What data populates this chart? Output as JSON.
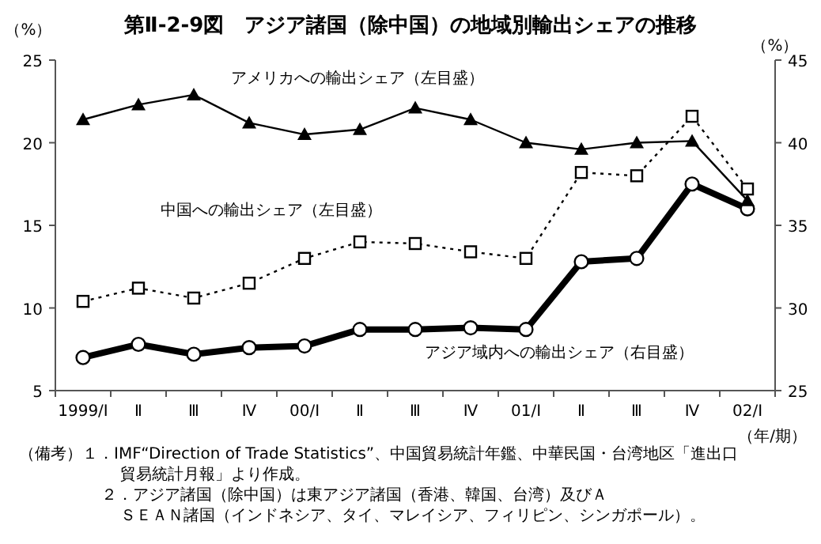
{
  "chart_data": {
    "type": "line",
    "title": "第Ⅱ-2-9図　アジア諸国（除中国）の地域別輸出シェアの推移",
    "ylabel": "（%）",
    "y2label": "（%）",
    "xlabel": "（年/期）",
    "categories": [
      "1999/Ⅰ",
      "Ⅱ",
      "Ⅲ",
      "Ⅳ",
      "00/Ⅰ",
      "Ⅱ",
      "Ⅲ",
      "Ⅳ",
      "01/Ⅰ",
      "Ⅱ",
      "Ⅲ",
      "Ⅳ",
      "02/Ⅰ"
    ],
    "series": [
      {
        "name": "アメリカへの輸出シェア（左目盛）",
        "color": "#000000",
        "marker": "triangle",
        "line_style": "solid",
        "values": [
          21.4,
          22.3,
          22.9,
          21.2,
          20.5,
          20.8,
          22.1,
          21.4,
          20.0,
          19.6,
          20.0,
          20.1,
          16.5
        ]
      },
      {
        "name": "中国への輸出シェア（左目盛）",
        "color": "#000000",
        "marker": "square",
        "line_style": "dotted",
        "values": [
          10.4,
          11.2,
          10.6,
          11.5,
          13.0,
          14.0,
          13.9,
          13.4,
          13.0,
          18.2,
          18.0,
          21.6,
          17.2
        ]
      },
      {
        "name": "アジア域内への輸出シェア（右目盛）",
        "color": "#000000",
        "marker": "circle",
        "line_style": "solid",
        "axis": "y2",
        "values": [
          27.0,
          27.8,
          27.2,
          27.6,
          27.7,
          28.7,
          28.7,
          28.8,
          28.7,
          32.8,
          33.0,
          37.5,
          36.0
        ]
      }
    ],
    "ylim": [
      5,
      25
    ],
    "yticks": [
      5,
      10,
      15,
      20,
      25
    ],
    "y2lim": [
      25,
      45
    ],
    "y2ticks": [
      25,
      30,
      35,
      40,
      45
    ],
    "grid": false,
    "annotations": [
      "（備考）１．IMF“Direction of Trade Statistics”、中国貿易統計年鑑、中華民国・台湾地区「進出口貿易統計月報」より作成。",
      "２．アジア諸国（除中国）は東アジア諸国（香港、韓国、台湾）及びＡＳＥＡＮ諸国（インドネシア、タイ、マレイシア、フィリピン、シンガポール）。"
    ]
  }
}
